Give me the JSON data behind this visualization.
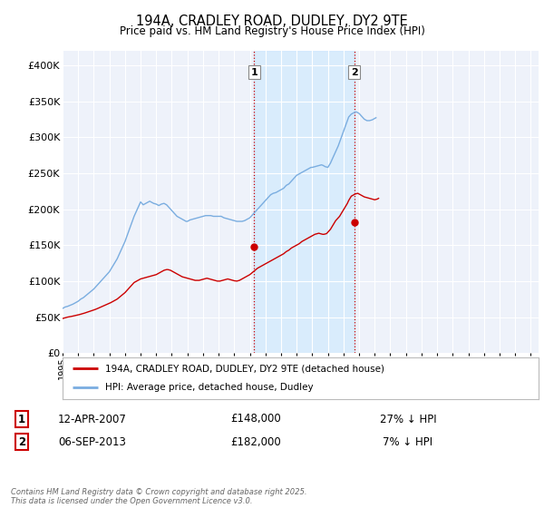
{
  "title": "194A, CRADLEY ROAD, DUDLEY, DY2 9TE",
  "subtitle": "Price paid vs. HM Land Registry's House Price Index (HPI)",
  "ylim": [
    0,
    420000
  ],
  "ytick_values": [
    0,
    50000,
    100000,
    150000,
    200000,
    250000,
    300000,
    350000,
    400000
  ],
  "background_color": "#ffffff",
  "plot_bg_color": "#eef2fa",
  "grid_color": "#ffffff",
  "hpi_color": "#7aade0",
  "price_color": "#cc0000",
  "transaction1": {
    "date": "12-APR-2007",
    "price": 148000,
    "hpi_rel": "27% ↓ HPI",
    "marker_year": 2007.28
  },
  "transaction2": {
    "date": "06-SEP-2013",
    "price": 182000,
    "hpi_rel": "7% ↓ HPI",
    "marker_year": 2013.68
  },
  "legend_line1": "194A, CRADLEY ROAD, DUDLEY, DY2 9TE (detached house)",
  "legend_line2": "HPI: Average price, detached house, Dudley",
  "footnote": "Contains HM Land Registry data © Crown copyright and database right 2025.\nThis data is licensed under the Open Government Licence v3.0.",
  "hpi_values_monthly": [
    62000,
    63000,
    64000,
    64500,
    65000,
    65800,
    66500,
    67200,
    68000,
    69000,
    70000,
    71000,
    72000,
    73500,
    75000,
    76000,
    77000,
    78500,
    80000,
    81500,
    83000,
    84500,
    86000,
    87500,
    89000,
    91000,
    93000,
    95000,
    97000,
    99000,
    101000,
    103000,
    105000,
    107000,
    109000,
    111000,
    113000,
    116000,
    119000,
    122000,
    125000,
    128000,
    131000,
    135000,
    139000,
    143000,
    147000,
    151000,
    155000,
    160000,
    165000,
    170000,
    175000,
    180000,
    185000,
    190000,
    194000,
    198000,
    202000,
    206000,
    210000,
    208000,
    206000,
    207000,
    208000,
    209000,
    210000,
    211000,
    210000,
    209000,
    208000,
    207500,
    207000,
    206000,
    205000,
    206000,
    207000,
    207500,
    208000,
    207000,
    206000,
    204000,
    202000,
    200000,
    198000,
    196000,
    194000,
    192000,
    190000,
    189000,
    188000,
    187000,
    186000,
    185000,
    184000,
    183000,
    183000,
    184000,
    185000,
    185500,
    186000,
    186500,
    187000,
    187500,
    188000,
    188500,
    189000,
    189500,
    190000,
    190500,
    191000,
    191000,
    191000,
    191000,
    191000,
    190500,
    190000,
    190000,
    190000,
    190000,
    190000,
    190000,
    190000,
    189000,
    188000,
    187500,
    187000,
    186500,
    186000,
    185500,
    185000,
    184500,
    184000,
    183500,
    183000,
    183000,
    183000,
    183000,
    183000,
    183500,
    184000,
    185000,
    186000,
    187000,
    188000,
    190000,
    192000,
    194000,
    196000,
    198000,
    200000,
    202000,
    204000,
    206000,
    208000,
    210000,
    212000,
    214000,
    216000,
    218000,
    220000,
    221000,
    222000,
    222500,
    223000,
    224000,
    225000,
    226000,
    227000,
    228000,
    229000,
    231000,
    233000,
    234000,
    235000,
    237000,
    239000,
    241000,
    243000,
    245000,
    247000,
    248000,
    249000,
    250000,
    251000,
    252000,
    253000,
    254000,
    255000,
    256000,
    257000,
    258000,
    258000,
    258500,
    259000,
    259500,
    260000,
    260500,
    261000,
    261500,
    261000,
    260000,
    259000,
    258500,
    258000,
    261000,
    264000,
    268000,
    272000,
    276000,
    280000,
    284000,
    288000,
    293000,
    298000,
    303000,
    308000,
    313000,
    318000,
    323000,
    328000,
    330000,
    332000,
    333000,
    334000,
    335000,
    335000,
    334000,
    333000,
    331000,
    329000,
    327000,
    325000,
    324000,
    323000,
    323000,
    323000,
    323500,
    324000,
    325000,
    326000,
    327000
  ],
  "price_values_monthly": [
    48000,
    48500,
    49000,
    49500,
    50000,
    50300,
    50600,
    51000,
    51400,
    51800,
    52200,
    52600,
    53000,
    53500,
    54000,
    54500,
    55000,
    55600,
    56200,
    56800,
    57400,
    58000,
    58600,
    59200,
    59800,
    60500,
    61200,
    62000,
    62800,
    63600,
    64400,
    65200,
    66000,
    66800,
    67600,
    68400,
    69200,
    70000,
    71000,
    72000,
    73000,
    74000,
    75000,
    76500,
    78000,
    79500,
    81000,
    82500,
    84000,
    86000,
    88000,
    90000,
    92000,
    94000,
    96000,
    98000,
    99000,
    100000,
    101000,
    102000,
    103000,
    103500,
    104000,
    104500,
    105000,
    105500,
    106000,
    106500,
    107000,
    107500,
    108000,
    108500,
    109000,
    110000,
    111000,
    112000,
    113000,
    114000,
    115000,
    115500,
    116000,
    116000,
    115500,
    115000,
    114000,
    113000,
    112000,
    111000,
    110000,
    109000,
    108000,
    107000,
    106000,
    105500,
    105000,
    104500,
    104000,
    103500,
    103000,
    102500,
    102000,
    101500,
    101000,
    101000,
    101000,
    101000,
    101500,
    102000,
    102500,
    103000,
    103500,
    104000,
    103500,
    103000,
    102500,
    102000,
    101500,
    101000,
    100500,
    100000,
    100000,
    100000,
    100500,
    101000,
    101500,
    102000,
    102500,
    103000,
    102500,
    102000,
    101500,
    101000,
    100500,
    100200,
    100000,
    100500,
    101000,
    102000,
    103000,
    104000,
    105000,
    106000,
    107000,
    108000,
    109000,
    110500,
    112000,
    113500,
    115000,
    116500,
    118000,
    119000,
    120000,
    121000,
    122000,
    123000,
    124000,
    125000,
    126000,
    127000,
    128000,
    129000,
    130000,
    131000,
    132000,
    133000,
    134000,
    135000,
    136000,
    137000,
    138000,
    139500,
    141000,
    142000,
    143000,
    144500,
    146000,
    147000,
    148000,
    149000,
    150000,
    151000,
    152000,
    153500,
    155000,
    156000,
    157000,
    158000,
    159000,
    160000,
    161000,
    162000,
    163000,
    164000,
    165000,
    165500,
    166000,
    166500,
    166000,
    165500,
    165000,
    165000,
    165500,
    166000,
    168000,
    170000,
    172000,
    175000,
    178000,
    181000,
    184000,
    186000,
    188000,
    190000,
    193000,
    196000,
    199000,
    202000,
    205000,
    208000,
    212000,
    215000,
    218000,
    219000,
    220000,
    221000,
    221500,
    222000,
    221000,
    220000,
    219000,
    218000,
    217000,
    216500,
    216000,
    215500,
    215000,
    214500,
    214000,
    213500,
    213000,
    213500,
    214000,
    215000
  ],
  "n_months_start_year": 1995,
  "shade_x1": 2007.28,
  "shade_x2": 2013.68,
  "xtick_years": [
    1995,
    1996,
    1997,
    1998,
    1999,
    2000,
    2001,
    2002,
    2003,
    2004,
    2005,
    2006,
    2007,
    2008,
    2009,
    2010,
    2011,
    2012,
    2013,
    2014,
    2015,
    2016,
    2017,
    2018,
    2019,
    2020,
    2021,
    2022,
    2023,
    2024,
    2025
  ]
}
